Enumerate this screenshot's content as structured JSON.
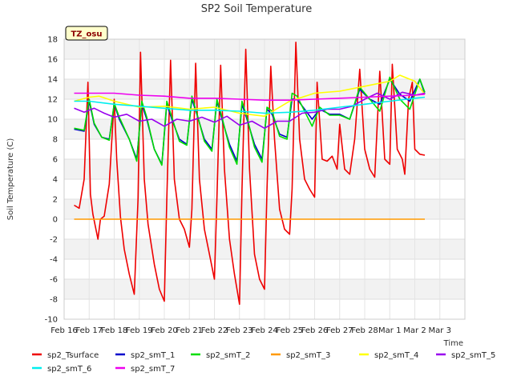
{
  "chart_data": {
    "type": "line",
    "title": "SP2 Soil Temperature",
    "xlabel": "Time",
    "ylabel": "Soil Temperature (C)",
    "badge": "TZ_osu",
    "ylim": [
      -10,
      18
    ],
    "yticks": [
      -10,
      -8,
      -6,
      -4,
      -2,
      0,
      2,
      4,
      6,
      8,
      10,
      12,
      14,
      16,
      18
    ],
    "xlim": [
      0,
      16
    ],
    "xticks": [
      {
        "x": 0,
        "label": "Feb 16"
      },
      {
        "x": 1,
        "label": "Feb 17"
      },
      {
        "x": 2,
        "label": "Feb 18"
      },
      {
        "x": 3,
        "label": "Feb 19"
      },
      {
        "x": 4,
        "label": "Feb 20"
      },
      {
        "x": 5,
        "label": "Feb 21"
      },
      {
        "x": 6,
        "label": "Feb 22"
      },
      {
        "x": 7,
        "label": "Feb 23"
      },
      {
        "x": 8,
        "label": "Feb 24"
      },
      {
        "x": 9,
        "label": "Feb 25"
      },
      {
        "x": 10,
        "label": "Feb 26"
      },
      {
        "x": 11,
        "label": "Feb 27"
      },
      {
        "x": 12,
        "label": "Feb 28"
      },
      {
        "x": 13,
        "label": "Mar 1"
      },
      {
        "x": 14,
        "label": "Mar 2"
      },
      {
        "x": 15,
        "label": "Mar 3"
      }
    ],
    "grid": true,
    "legend_position": "bottom",
    "series": [
      {
        "name": "sp2_Tsurface",
        "color": "#ee0000",
        "x": [
          0.4,
          0.6,
          0.8,
          0.95,
          1.05,
          1.15,
          1.35,
          1.45,
          1.6,
          1.8,
          2.0,
          2.1,
          2.25,
          2.4,
          2.6,
          2.8,
          2.95,
          3.05,
          3.2,
          3.35,
          3.6,
          3.8,
          4.0,
          4.1,
          4.25,
          4.4,
          4.6,
          4.8,
          5.0,
          5.1,
          5.25,
          5.4,
          5.6,
          5.8,
          6.0,
          6.1,
          6.25,
          6.4,
          6.6,
          6.8,
          7.0,
          7.1,
          7.25,
          7.4,
          7.6,
          7.8,
          8.0,
          8.1,
          8.25,
          8.4,
          8.6,
          8.8,
          9.0,
          9.1,
          9.25,
          9.4,
          9.6,
          9.8,
          10.0,
          10.1,
          10.3,
          10.5,
          10.7,
          10.9,
          11.0,
          11.2,
          11.4,
          11.6,
          11.8,
          12.0,
          12.2,
          12.4,
          12.6,
          12.8,
          13.0,
          13.1,
          13.3,
          13.5,
          13.6,
          13.75,
          13.9,
          14.0,
          14.2,
          14.4
        ],
        "y": [
          1.4,
          1.1,
          4.0,
          13.7,
          2.5,
          0.5,
          -2.0,
          0.0,
          0.3,
          3.5,
          12.0,
          6.0,
          0.2,
          -3.0,
          -5.5,
          -7.5,
          2.0,
          16.7,
          4.0,
          -0.5,
          -4.5,
          -7.0,
          -8.2,
          2.0,
          15.9,
          4.0,
          0.0,
          -1.0,
          -2.8,
          1.0,
          15.6,
          4.0,
          -1.0,
          -3.5,
          -6.0,
          2.0,
          15.4,
          5.0,
          -2.0,
          -5.5,
          -8.5,
          3.0,
          17.0,
          5.0,
          -3.5,
          -6.0,
          -7.0,
          3.0,
          15.3,
          8.0,
          1.0,
          -1.0,
          -1.5,
          3.0,
          17.7,
          8.0,
          4.0,
          3.0,
          2.2,
          13.7,
          6.0,
          5.8,
          6.3,
          5.0,
          9.5,
          5.0,
          4.5,
          8.0,
          15.0,
          7.0,
          5.0,
          4.2,
          14.8,
          6.0,
          5.5,
          15.5,
          7.0,
          6.0,
          4.5,
          12.0,
          13.7,
          7.0,
          6.5,
          6.4
        ]
      },
      {
        "name": "sp2_smT_1",
        "color": "#0000cc",
        "x": [
          0.4,
          0.8,
          1.0,
          1.2,
          1.5,
          1.8,
          2.0,
          2.2,
          2.6,
          2.9,
          3.1,
          3.3,
          3.6,
          3.9,
          4.1,
          4.3,
          4.6,
          4.9,
          5.1,
          5.3,
          5.6,
          5.9,
          6.1,
          6.3,
          6.6,
          6.9,
          7.1,
          7.3,
          7.6,
          7.9,
          8.1,
          8.3,
          8.6,
          8.9,
          9.1,
          9.3,
          9.6,
          9.9,
          10.2,
          10.6,
          11.0,
          11.4,
          11.8,
          12.2,
          12.6,
          13.0,
          13.4,
          13.8,
          14.2,
          14.4
        ],
        "y": [
          9.0,
          8.8,
          11.8,
          9.5,
          8.2,
          8.0,
          11.5,
          10.0,
          8.0,
          6.0,
          11.5,
          10.0,
          7.0,
          5.5,
          11.5,
          10.0,
          8.0,
          7.5,
          12.0,
          10.5,
          8.0,
          7.0,
          11.8,
          10.0,
          7.5,
          5.8,
          11.5,
          10.0,
          7.5,
          6.0,
          11.0,
          10.5,
          8.5,
          8.2,
          12.0,
          12.0,
          11.0,
          10.0,
          11.0,
          10.5,
          10.5,
          10.0,
          13.0,
          12.0,
          11.5,
          14.0,
          12.5,
          11.8,
          14.0,
          12.5
        ]
      },
      {
        "name": "sp2_smT_2",
        "color": "#00dd00",
        "x": [
          0.4,
          0.8,
          1.0,
          1.2,
          1.5,
          1.8,
          2.0,
          2.2,
          2.6,
          2.9,
          3.1,
          3.3,
          3.6,
          3.9,
          4.1,
          4.3,
          4.6,
          4.9,
          5.1,
          5.3,
          5.6,
          5.9,
          6.1,
          6.3,
          6.6,
          6.9,
          7.1,
          7.3,
          7.6,
          7.9,
          8.1,
          8.3,
          8.6,
          8.9,
          9.1,
          9.3,
          9.6,
          9.9,
          10.2,
          10.6,
          11.0,
          11.4,
          11.8,
          12.2,
          12.6,
          13.0,
          13.4,
          13.8,
          14.2,
          14.4
        ],
        "y": [
          9.1,
          8.9,
          12.0,
          9.6,
          8.2,
          7.9,
          11.6,
          10.2,
          8.0,
          5.8,
          11.8,
          10.2,
          7.0,
          5.4,
          11.8,
          10.2,
          7.8,
          7.4,
          12.3,
          10.6,
          7.8,
          6.8,
          12.0,
          10.2,
          7.2,
          5.5,
          11.8,
          10.2,
          7.2,
          5.7,
          11.2,
          10.8,
          8.3,
          8.0,
          12.6,
          12.3,
          10.8,
          9.3,
          11.2,
          10.4,
          10.4,
          10.0,
          13.2,
          12.0,
          10.8,
          14.2,
          12.0,
          11.0,
          14.0,
          12.7
        ]
      },
      {
        "name": "sp2_smT_3",
        "color": "#ff9900",
        "x": [
          0.4,
          14.4
        ],
        "y": [
          0.0,
          0.0
        ]
      },
      {
        "name": "sp2_smT_4",
        "color": "#ffff00",
        "x": [
          0.4,
          1.0,
          1.4,
          2.0,
          3.0,
          4.0,
          5.0,
          6.0,
          7.0,
          8.0,
          9.0,
          10.0,
          11.0,
          12.0,
          13.0,
          13.4,
          14.0,
          14.4
        ],
        "y": [
          11.8,
          12.2,
          12.3,
          11.8,
          11.2,
          11.3,
          11.0,
          11.2,
          10.6,
          10.3,
          11.8,
          12.6,
          12.8,
          13.3,
          13.8,
          14.4,
          13.8,
          12.5
        ]
      },
      {
        "name": "sp2_smT_5",
        "color": "#9900ee",
        "x": [
          0.4,
          0.8,
          1.2,
          1.6,
          2.0,
          2.5,
          3.0,
          3.5,
          4.0,
          4.5,
          5.0,
          5.5,
          6.0,
          6.5,
          7.0,
          7.5,
          8.0,
          8.5,
          9.0,
          9.5,
          10.0,
          10.5,
          11.0,
          11.5,
          12.0,
          12.5,
          13.0,
          13.5,
          14.0,
          14.4
        ],
        "y": [
          11.1,
          10.7,
          11.1,
          10.6,
          10.2,
          10.5,
          9.8,
          10.0,
          9.3,
          10.0,
          9.8,
          10.2,
          9.7,
          10.3,
          9.4,
          9.8,
          9.1,
          9.8,
          9.8,
          10.6,
          10.7,
          11.0,
          11.0,
          11.3,
          12.0,
          12.6,
          12.0,
          12.7,
          12.4,
          12.6
        ]
      },
      {
        "name": "sp2_smT_6",
        "color": "#00eeee",
        "x": [
          0.4,
          1.0,
          2.0,
          3.0,
          4.0,
          5.0,
          6.0,
          7.0,
          8.0,
          9.0,
          10.0,
          11.0,
          12.0,
          13.0,
          14.0,
          14.4
        ],
        "y": [
          11.8,
          11.8,
          11.5,
          11.3,
          11.1,
          10.9,
          10.9,
          10.8,
          10.6,
          10.7,
          10.9,
          11.2,
          11.5,
          11.8,
          12.1,
          12.2
        ]
      },
      {
        "name": "sp2_smT_7",
        "color": "#ee00ee",
        "x": [
          0.4,
          1.0,
          2.0,
          3.0,
          4.0,
          5.0,
          6.0,
          7.0,
          8.0,
          9.0,
          10.0,
          11.0,
          12.0,
          13.0,
          14.0,
          14.4
        ],
        "y": [
          12.6,
          12.6,
          12.6,
          12.4,
          12.3,
          12.1,
          12.1,
          12.0,
          11.9,
          11.9,
          12.0,
          12.1,
          12.2,
          12.3,
          12.4,
          12.5
        ]
      }
    ]
  }
}
